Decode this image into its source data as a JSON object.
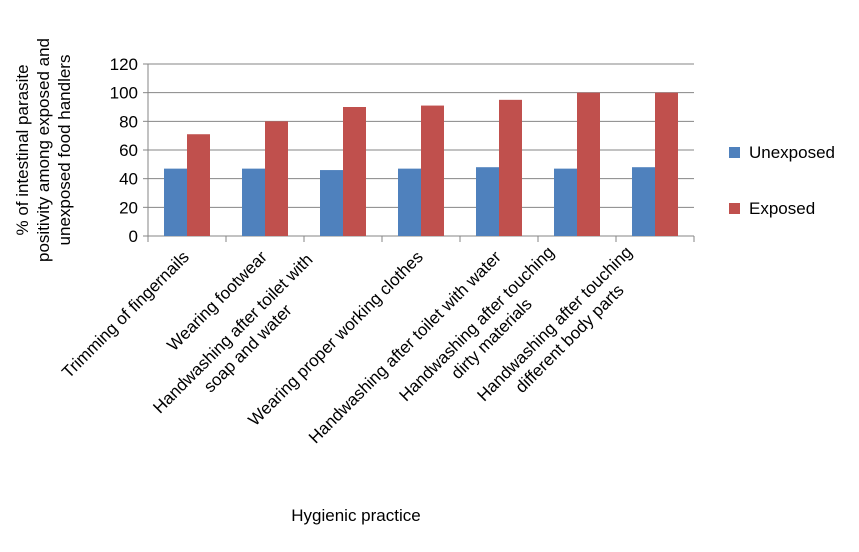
{
  "chart_data": {
    "type": "bar",
    "title": "",
    "xlabel": "Hygienic practice",
    "ylabel_lines": [
      "% of intestinal parasite",
      "positivity among exposed and",
      "unexposed food handlers"
    ],
    "ylim": [
      0,
      120
    ],
    "yticks": [
      0,
      20,
      40,
      60,
      80,
      100,
      120
    ],
    "grid": true,
    "legend_position": "right",
    "categories": [
      [
        "Trimming of fingernails"
      ],
      [
        "Wearing footwear"
      ],
      [
        "Handwashing after toilet with",
        "soap and water"
      ],
      [
        "Wearing proper working clothes"
      ],
      [
        "Handwashing after toilet with water"
      ],
      [
        "Handwashing after touching",
        "dirty materials"
      ],
      [
        "Handwashing after touching",
        "different body parts"
      ]
    ],
    "series": [
      {
        "name": "Unexposed",
        "color": "#4F81BD",
        "values": [
          47,
          47,
          46,
          47,
          48,
          47,
          48
        ]
      },
      {
        "name": "Exposed",
        "color": "#C0504D",
        "values": [
          71,
          80,
          90,
          91,
          95,
          100,
          100
        ]
      }
    ]
  }
}
